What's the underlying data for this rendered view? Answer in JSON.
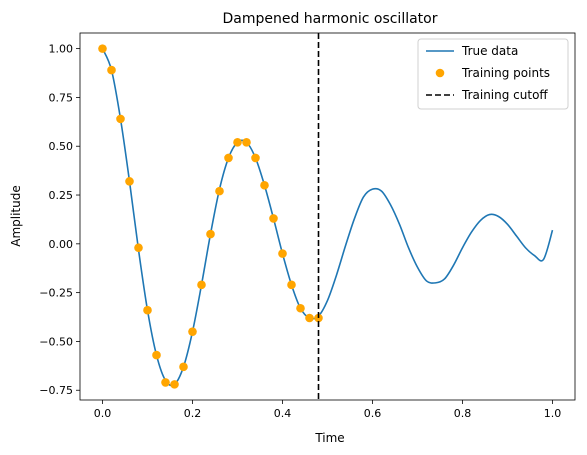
{
  "chart_data": {
    "type": "line",
    "title": "Dampened harmonic oscillator",
    "xlabel": "Time",
    "ylabel": "Amplitude",
    "xlim": [
      -0.05,
      1.05
    ],
    "ylim": [
      -0.8,
      1.08
    ],
    "x_ticks": [
      0.0,
      0.2,
      0.4,
      0.6,
      0.8,
      1.0
    ],
    "x_tick_labels": [
      "0.0",
      "0.2",
      "0.4",
      "0.6",
      "0.8",
      "1.0"
    ],
    "y_ticks": [
      1.0,
      0.75,
      0.5,
      0.25,
      0.0,
      -0.25,
      -0.5,
      -0.75
    ],
    "y_tick_labels": [
      "1.00",
      "0.75",
      "0.50",
      "0.25",
      "0.00",
      "−0.25",
      "−0.50",
      "−0.75"
    ],
    "grid": false,
    "legend_position": "top-right",
    "series": [
      {
        "name": "True data",
        "kind": "line",
        "color": "#1f77b4",
        "x": [
          0.0,
          0.02,
          0.04,
          0.06,
          0.08,
          0.1,
          0.12,
          0.14,
          0.16,
          0.18,
          0.2,
          0.22,
          0.24,
          0.26,
          0.28,
          0.3,
          0.32,
          0.34,
          0.36,
          0.38,
          0.4,
          0.42,
          0.44,
          0.46,
          0.48,
          0.5,
          0.52,
          0.54,
          0.56,
          0.58,
          0.6,
          0.62,
          0.64,
          0.66,
          0.68,
          0.7,
          0.72,
          0.74,
          0.76,
          0.78,
          0.8,
          0.82,
          0.84,
          0.86,
          0.88,
          0.9,
          0.92,
          0.94,
          0.96,
          0.98,
          1.0
        ],
        "y": [
          1.0,
          0.89,
          0.64,
          0.32,
          -0.03,
          -0.34,
          -0.57,
          -0.7,
          -0.72,
          -0.63,
          -0.45,
          -0.21,
          0.05,
          0.28,
          0.44,
          0.52,
          0.52,
          0.44,
          0.3,
          0.13,
          -0.05,
          -0.21,
          -0.33,
          -0.38,
          -0.37,
          -0.29,
          -0.16,
          -0.01,
          0.13,
          0.24,
          0.28,
          0.27,
          0.2,
          0.1,
          -0.02,
          -0.12,
          -0.19,
          -0.2,
          -0.18,
          -0.11,
          -0.02,
          0.06,
          0.12,
          0.15,
          0.14,
          0.1,
          0.04,
          -0.02,
          -0.06,
          -0.08,
          0.07
        ]
      },
      {
        "name": "Training points",
        "kind": "scatter",
        "color": "#ffa500",
        "x": [
          0.0,
          0.02,
          0.04,
          0.06,
          0.08,
          0.1,
          0.12,
          0.14,
          0.16,
          0.18,
          0.2,
          0.22,
          0.24,
          0.26,
          0.28,
          0.3,
          0.32,
          0.34,
          0.36,
          0.38,
          0.4,
          0.42,
          0.44,
          0.46,
          0.48
        ],
        "y": [
          1.0,
          0.89,
          0.64,
          0.32,
          -0.02,
          -0.34,
          -0.57,
          -0.71,
          -0.72,
          -0.63,
          -0.45,
          -0.21,
          0.05,
          0.27,
          0.44,
          0.52,
          0.52,
          0.44,
          0.3,
          0.13,
          -0.05,
          -0.21,
          -0.33,
          -0.38,
          -0.38
        ]
      },
      {
        "name": "Training cutoff",
        "kind": "vline",
        "color": "#000000",
        "x": 0.48
      }
    ]
  }
}
